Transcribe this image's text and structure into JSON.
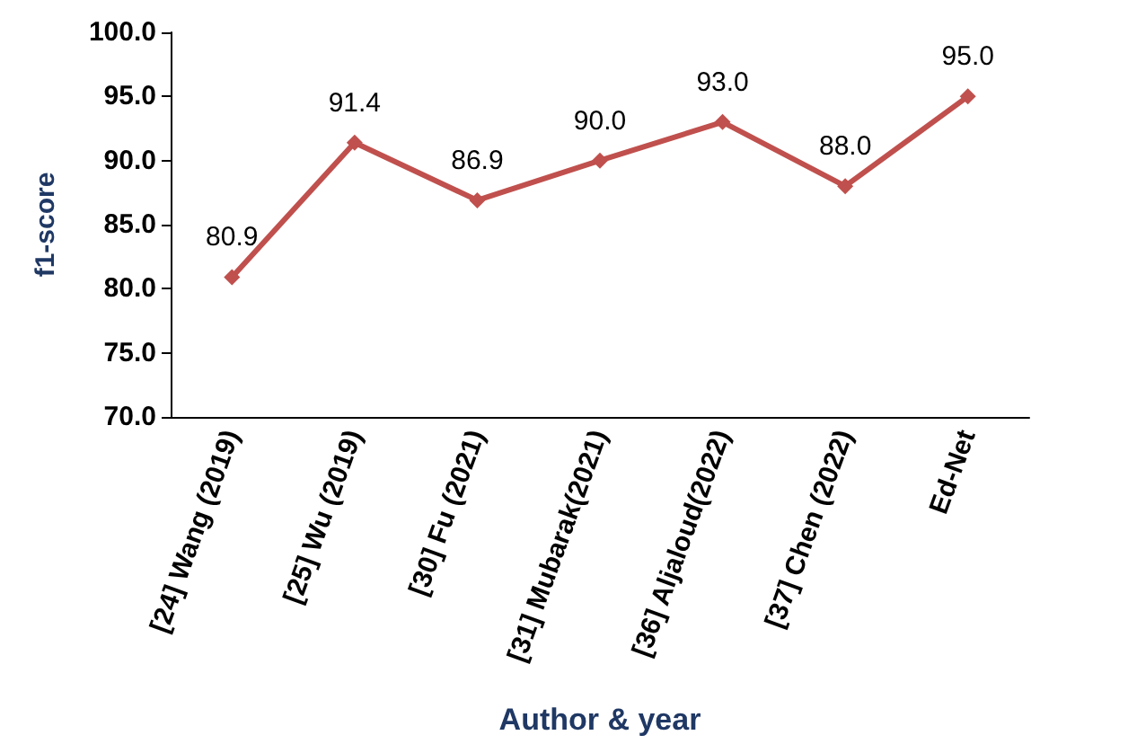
{
  "chart_data": {
    "type": "line",
    "xlabel": "Author & year",
    "ylabel": "f1-score",
    "categories": [
      "[24] Wang (2019)",
      "[25] Wu (2019)",
      "[30] Fu (2021)",
      "[31] Mubarak(2021)",
      "[36] Aljaloud(2022)",
      "[37] Chen (2022)",
      "Ed-Net"
    ],
    "series": [
      {
        "color": "#c0504d",
        "values": [
          80.9,
          91.4,
          86.9,
          90.0,
          93.0,
          88.0,
          95.0
        ],
        "value_labels": [
          "80.9",
          "91.4",
          "86.9",
          "90.0",
          "93.0",
          "88.0",
          "95.0"
        ]
      }
    ],
    "ylim": [
      70,
      100
    ],
    "yticks": [
      {
        "value": 70,
        "label": "70.0"
      },
      {
        "value": 75,
        "label": "75.0"
      },
      {
        "value": 80,
        "label": "80.0"
      },
      {
        "value": 85,
        "label": "85.0"
      },
      {
        "value": 90,
        "label": "90.0"
      },
      {
        "value": 95,
        "label": "95.0"
      },
      {
        "value": 100,
        "label": "100.0"
      }
    ],
    "marker": "diamond",
    "line_style": "solid",
    "grid": false
  }
}
